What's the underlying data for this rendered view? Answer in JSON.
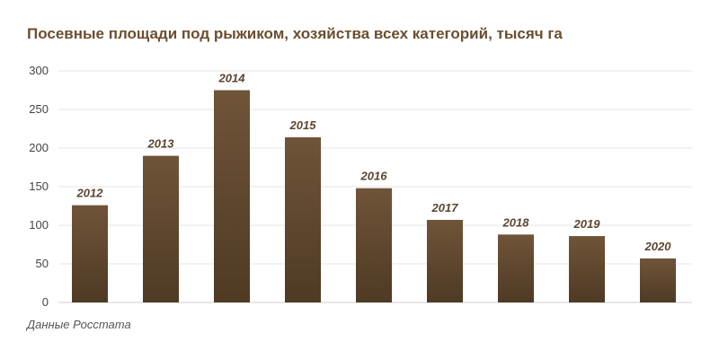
{
  "chart_data": {
    "type": "bar",
    "title": "Посевные площади под рыжиком, хозяйства всех категорий, тысяч га",
    "source": "Данные Росстата",
    "categories": [
      "2012",
      "2013",
      "2014",
      "2015",
      "2016",
      "2017",
      "2018",
      "2019",
      "2020"
    ],
    "values": [
      126,
      190,
      275,
      214,
      148,
      107,
      88,
      86,
      57
    ],
    "data_labels": [
      "2012",
      "2013",
      "2014",
      "2015",
      "2016",
      "2017",
      "2018",
      "2019",
      "2020"
    ],
    "y_ticks": [
      "0",
      "50",
      "100",
      "150",
      "200",
      "250",
      "300"
    ],
    "ylim": [
      0,
      300
    ],
    "grid": true,
    "legend": "none",
    "bar_color_top": "#6f5438",
    "bar_color_bottom": "#4f3a24",
    "label_color": "#5a4630",
    "title_color": "#6b4e2e"
  }
}
